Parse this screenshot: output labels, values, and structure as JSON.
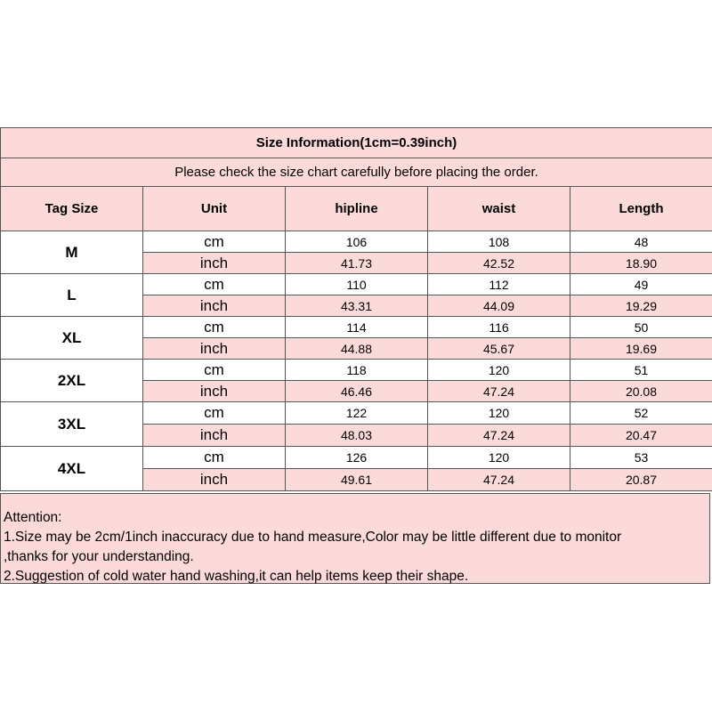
{
  "title": "Size Information(1cm=0.39inch)",
  "subtitle": "Please check the size chart carefully before placing the order.",
  "headers": [
    "Tag Size",
    "Unit",
    "hipline",
    "waist",
    "Length"
  ],
  "rows": [
    {
      "size": "M",
      "cm": [
        "106",
        "108",
        "48"
      ],
      "inch": [
        "41.73",
        "42.52",
        "18.90"
      ]
    },
    {
      "size": "L",
      "cm": [
        "110",
        "112",
        "49"
      ],
      "inch": [
        "43.31",
        "44.09",
        "19.29"
      ]
    },
    {
      "size": "XL",
      "cm": [
        "114",
        "116",
        "50"
      ],
      "inch": [
        "44.88",
        "45.67",
        "19.69"
      ]
    },
    {
      "size": "2XL",
      "cm": [
        "118",
        "120",
        "51"
      ],
      "inch": [
        "46.46",
        "47.24",
        "20.08"
      ]
    },
    {
      "size": "3XL",
      "cm": [
        "122",
        "120",
        "52"
      ],
      "inch": [
        "48.03",
        "47.24",
        "20.47"
      ]
    },
    {
      "size": "4XL",
      "cm": [
        "126",
        "120",
        "53"
      ],
      "inch": [
        "49.61",
        "47.24",
        "20.87"
      ]
    }
  ],
  "units": {
    "cm": "cm",
    "inch": "inch"
  },
  "attention": [
    "Attention:",
    "1.Size may be 2cm/1inch inaccuracy due to hand measure,Color may be little different due to monitor",
    ",thanks for your understanding.",
    "2.Suggestion of cold water hand washing,it can help items keep their shape."
  ],
  "colors": {
    "pink": "#fcdada",
    "border": "#555555"
  }
}
